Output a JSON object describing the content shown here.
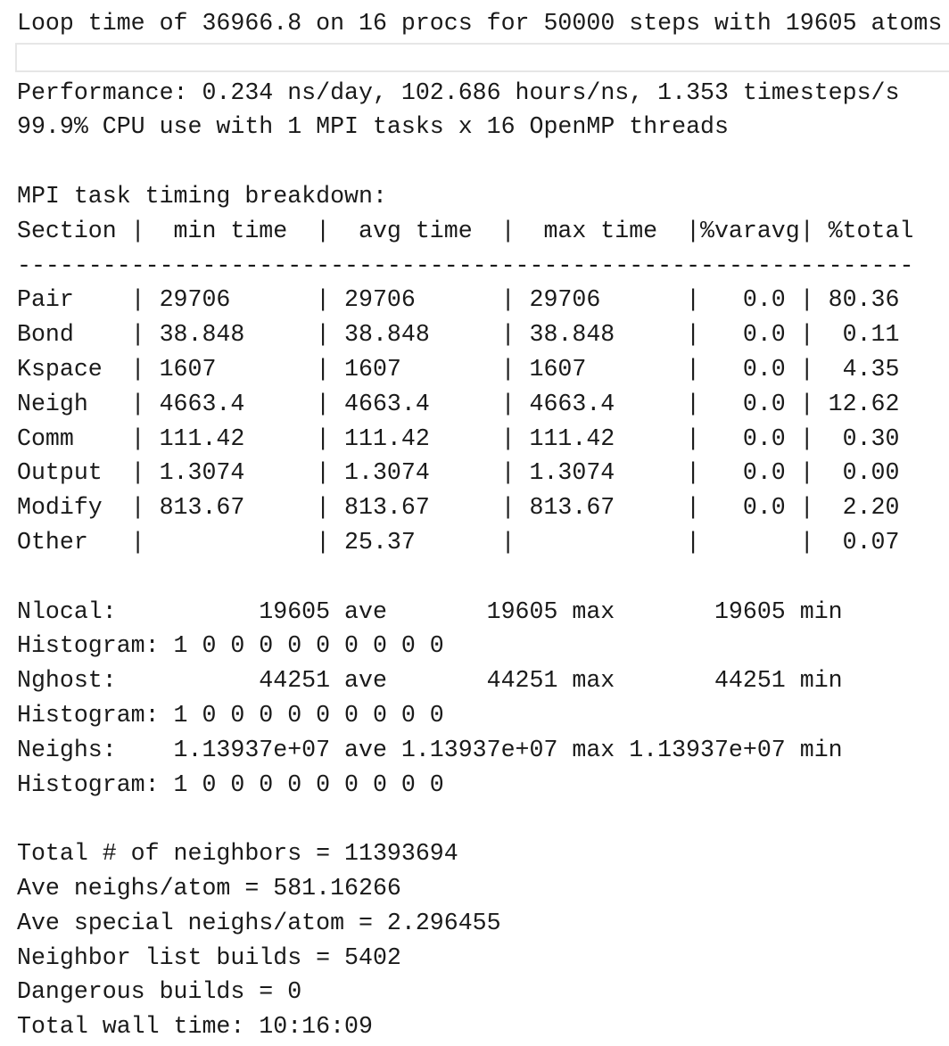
{
  "loop": "Loop time of 36966.8 on 16 procs for 50000 steps with 19605 atoms",
  "performance": "Performance: 0.234 ns/day, 102.686 hours/ns, 1.353 timesteps/s",
  "cpu": "99.9% CPU use with 1 MPI tasks x 16 OpenMP threads",
  "timing": {
    "title": "MPI task timing breakdown:",
    "header": [
      "Section",
      "min time",
      "avg time",
      "max time",
      "%varavg",
      "%total"
    ],
    "divider": "|",
    "rule": "---------------------------------------------------------------",
    "rows": [
      [
        "Pair",
        "29706",
        "29706",
        "29706",
        "0.0",
        "80.36"
      ],
      [
        "Bond",
        "38.848",
        "38.848",
        "38.848",
        "0.0",
        "0.11"
      ],
      [
        "Kspace",
        "1607",
        "1607",
        "1607",
        "0.0",
        "4.35"
      ],
      [
        "Neigh",
        "4663.4",
        "4663.4",
        "4663.4",
        "0.0",
        "12.62"
      ],
      [
        "Comm",
        "111.42",
        "111.42",
        "111.42",
        "0.0",
        "0.30"
      ],
      [
        "Output",
        "1.3074",
        "1.3074",
        "1.3074",
        "0.0",
        "0.00"
      ],
      [
        "Modify",
        "813.67",
        "813.67",
        "813.67",
        "0.0",
        "2.20"
      ],
      [
        "Other",
        null,
        "25.37",
        null,
        null,
        "0.07"
      ]
    ]
  },
  "stats": [
    {
      "label": "Nlocal:",
      "cells": [
        [
          "19605",
          "ave"
        ],
        [
          "19605",
          "max"
        ],
        [
          "19605",
          "min"
        ]
      ],
      "histogram": "Histogram: 1 0 0 0 0 0 0 0 0 0"
    },
    {
      "label": "Nghost:",
      "cells": [
        [
          "44251",
          "ave"
        ],
        [
          "44251",
          "max"
        ],
        [
          "44251",
          "min"
        ]
      ],
      "histogram": "Histogram: 1 0 0 0 0 0 0 0 0 0"
    },
    {
      "label": "Neighs:",
      "cells": [
        [
          "1.13937e+07",
          "ave"
        ],
        [
          "1.13937e+07",
          "max"
        ],
        [
          "1.13937e+07",
          "min"
        ]
      ],
      "histogram": "Histogram: 1 0 0 0 0 0 0 0 0 0"
    }
  ],
  "summary": [
    "Total # of neighbors = 11393694",
    "Ave neighs/atom = 581.16266",
    "Ave special neighs/atom = 2.296455",
    "Neighbor list builds = 5402",
    "Dangerous builds = 0",
    "Total wall time: 10:16:09"
  ]
}
